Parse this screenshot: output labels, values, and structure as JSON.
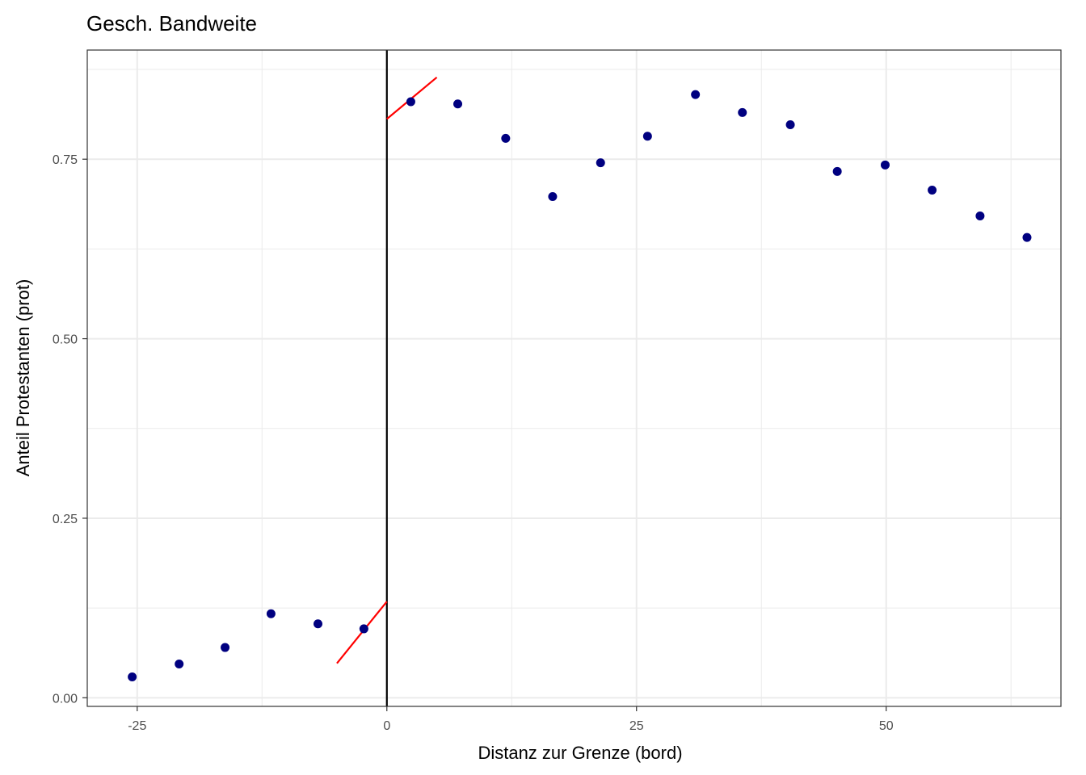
{
  "chart_data": {
    "type": "scatter",
    "title": "Gesch. Bandweite",
    "xlabel": "Distanz zur Grenze (bord)",
    "ylabel": "Anteil Protestanten (prot)",
    "xlim": [
      -30,
      67.5
    ],
    "ylim": [
      -0.012,
      0.902
    ],
    "x_ticks": [
      -25,
      0,
      25,
      50
    ],
    "x_tick_labels": [
      "-25",
      "0",
      "25",
      "50"
    ],
    "y_ticks": [
      0.0,
      0.25,
      0.5,
      0.75
    ],
    "y_tick_labels": [
      "0.00",
      "0.25",
      "0.50",
      "0.75"
    ],
    "x_minor_ticks": [
      -12.5,
      12.5,
      37.5,
      62.5
    ],
    "y_minor_ticks": [
      0.125,
      0.375,
      0.625,
      0.875
    ],
    "grid": true,
    "cutoff": 0,
    "points": [
      {
        "x": -25.5,
        "y": 0.029
      },
      {
        "x": -20.8,
        "y": 0.047
      },
      {
        "x": -16.2,
        "y": 0.07
      },
      {
        "x": -11.6,
        "y": 0.117
      },
      {
        "x": -6.9,
        "y": 0.103
      },
      {
        "x": -2.3,
        "y": 0.096
      },
      {
        "x": 2.4,
        "y": 0.83
      },
      {
        "x": 7.1,
        "y": 0.827
      },
      {
        "x": 11.9,
        "y": 0.779
      },
      {
        "x": 16.6,
        "y": 0.698
      },
      {
        "x": 21.4,
        "y": 0.745
      },
      {
        "x": 26.1,
        "y": 0.782
      },
      {
        "x": 30.9,
        "y": 0.84
      },
      {
        "x": 35.6,
        "y": 0.815
      },
      {
        "x": 40.4,
        "y": 0.798
      },
      {
        "x": 45.1,
        "y": 0.733
      },
      {
        "x": 49.9,
        "y": 0.742
      },
      {
        "x": 54.6,
        "y": 0.707
      },
      {
        "x": 59.4,
        "y": 0.671
      },
      {
        "x": 64.1,
        "y": 0.641
      }
    ],
    "fit_lines": [
      {
        "x": [
          -5,
          0
        ],
        "y": [
          0.048,
          0.134
        ]
      },
      {
        "x": [
          0,
          5
        ],
        "y": [
          0.806,
          0.864
        ]
      }
    ],
    "colors": {
      "points": "#000080",
      "fit": "#ff0000",
      "cutoff_line": "#000000",
      "grid": "#ebebeb",
      "border": "#333333"
    }
  }
}
